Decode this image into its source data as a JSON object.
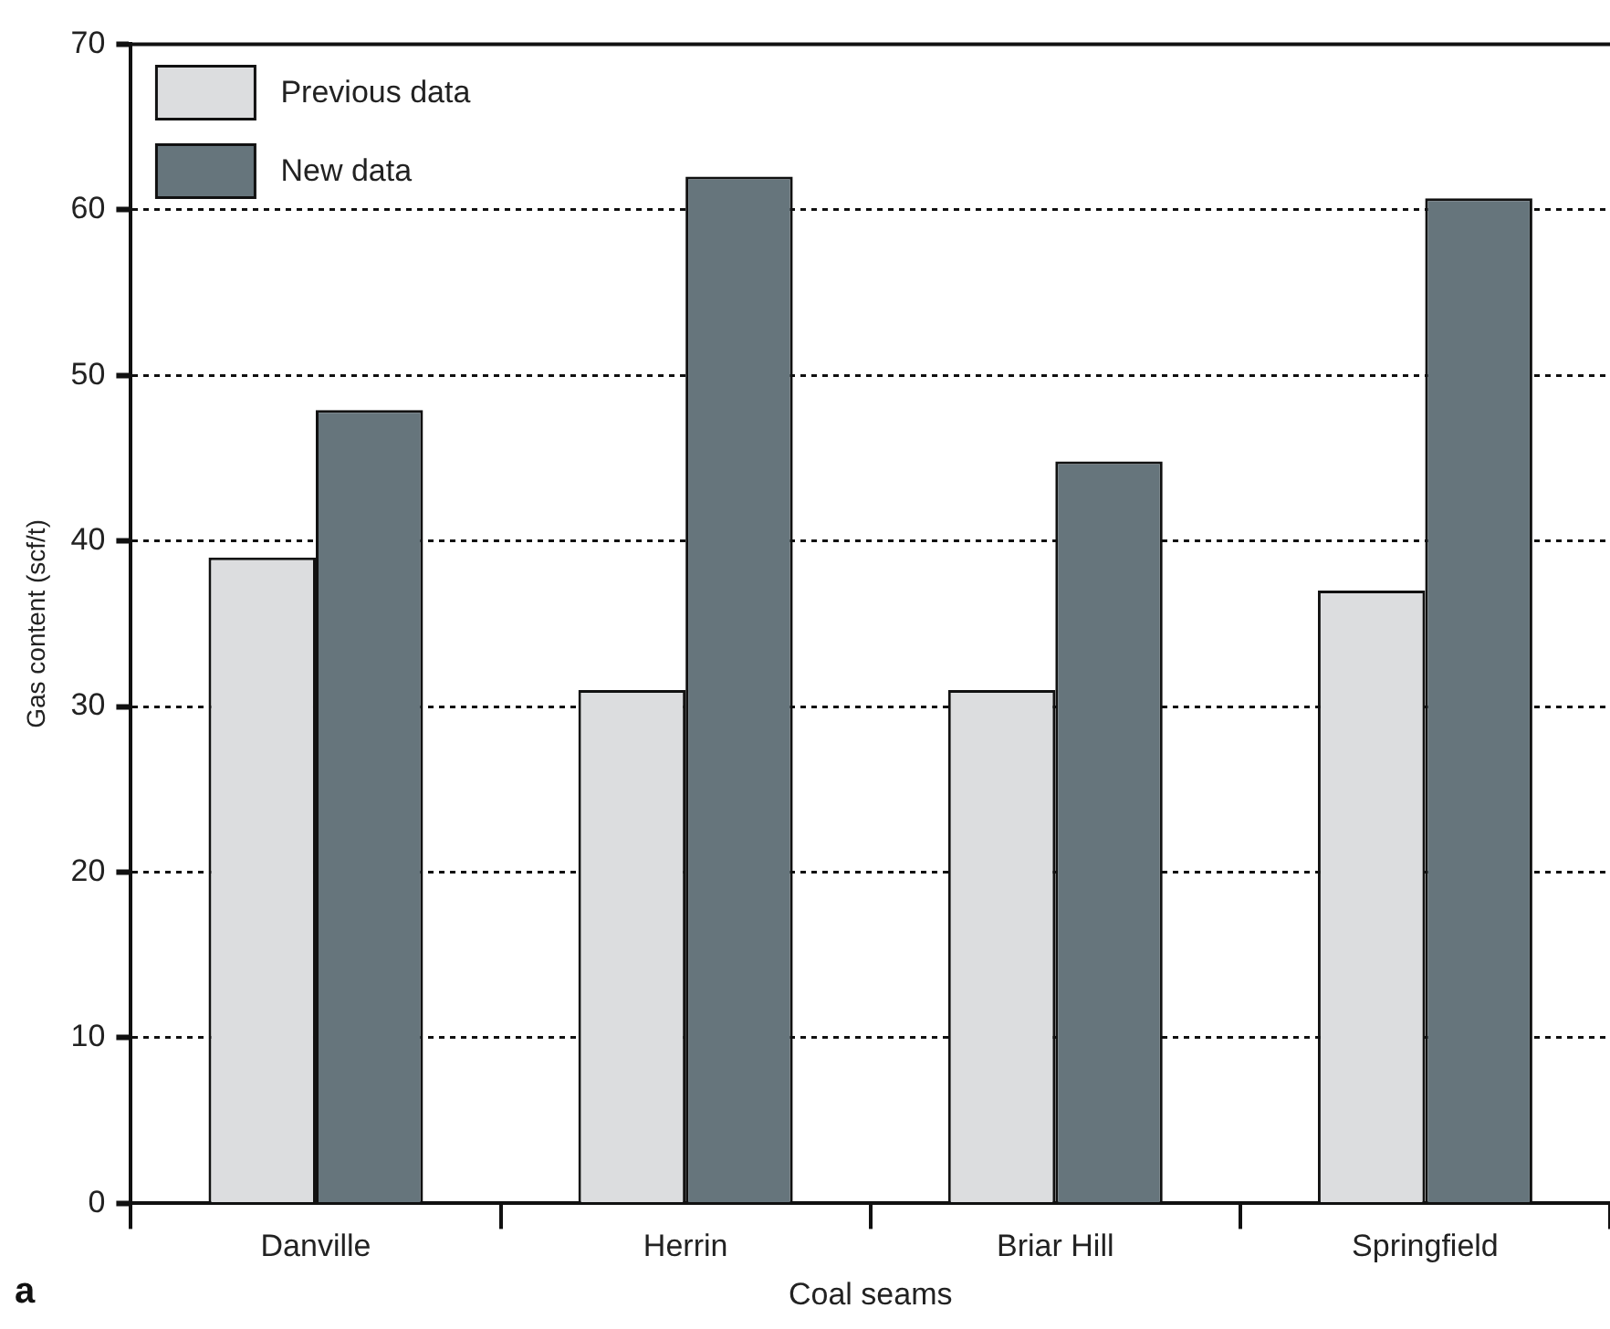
{
  "chart_data": {
    "type": "bar",
    "xlabel": "Coal seams",
    "ylabel": "Gas content (scf/t)",
    "categories": [
      "Danville",
      "Herrin",
      "Briar Hill",
      "Springfield"
    ],
    "series": [
      {
        "name": "Previous data",
        "color": "#dcdddf",
        "values": [
          39,
          31,
          31,
          37
        ]
      },
      {
        "name": "New data",
        "color": "#66757c",
        "values": [
          47.9,
          62,
          44.8,
          60.7
        ]
      }
    ],
    "ylim": [
      0,
      70
    ],
    "yticks": [
      0,
      10,
      20,
      30,
      40,
      50,
      60,
      70
    ],
    "grid": "y",
    "legend": "top left",
    "annotations": [
      "a"
    ]
  }
}
